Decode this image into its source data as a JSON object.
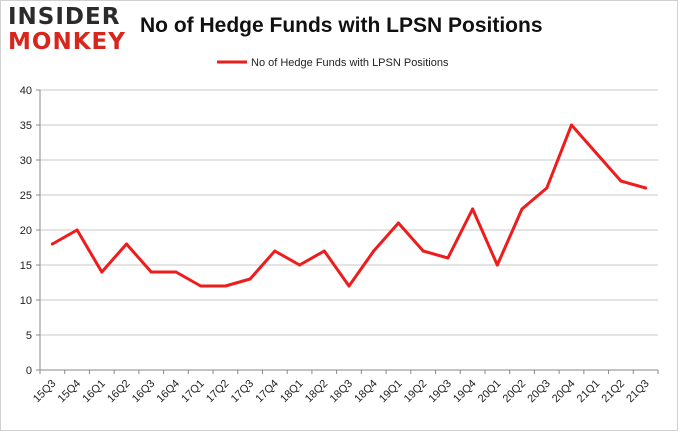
{
  "brand": {
    "line1": "INSIDER",
    "line2": "MONKEY"
  },
  "chart_data": {
    "type": "line",
    "title": "No of Hedge Funds with LPSN Positions",
    "xlabel": "",
    "ylabel": "",
    "categories": [
      "15Q3",
      "15Q4",
      "16Q1",
      "16Q2",
      "16Q3",
      "16Q4",
      "17Q1",
      "17Q2",
      "17Q3",
      "17Q4",
      "18Q1",
      "18Q2",
      "18Q3",
      "18Q4",
      "19Q1",
      "19Q2",
      "19Q3",
      "19Q4",
      "20Q1",
      "20Q2",
      "20Q3",
      "20Q4",
      "21Q1",
      "21Q2",
      "21Q3"
    ],
    "series": [
      {
        "name": "No of Hedge Funds with LPSN Positions",
        "values": [
          18,
          20,
          14,
          18,
          14,
          14,
          12,
          12,
          13,
          17,
          15,
          17,
          12,
          17,
          21,
          17,
          16,
          23,
          15,
          23,
          26,
          35,
          31,
          27,
          26
        ],
        "color": "#ee1c1c"
      }
    ],
    "ylim": [
      0,
      40
    ],
    "yticks": [
      0,
      5,
      10,
      15,
      20,
      25,
      30,
      35,
      40
    ],
    "grid": "horizontal",
    "legend_position": "top-center"
  }
}
